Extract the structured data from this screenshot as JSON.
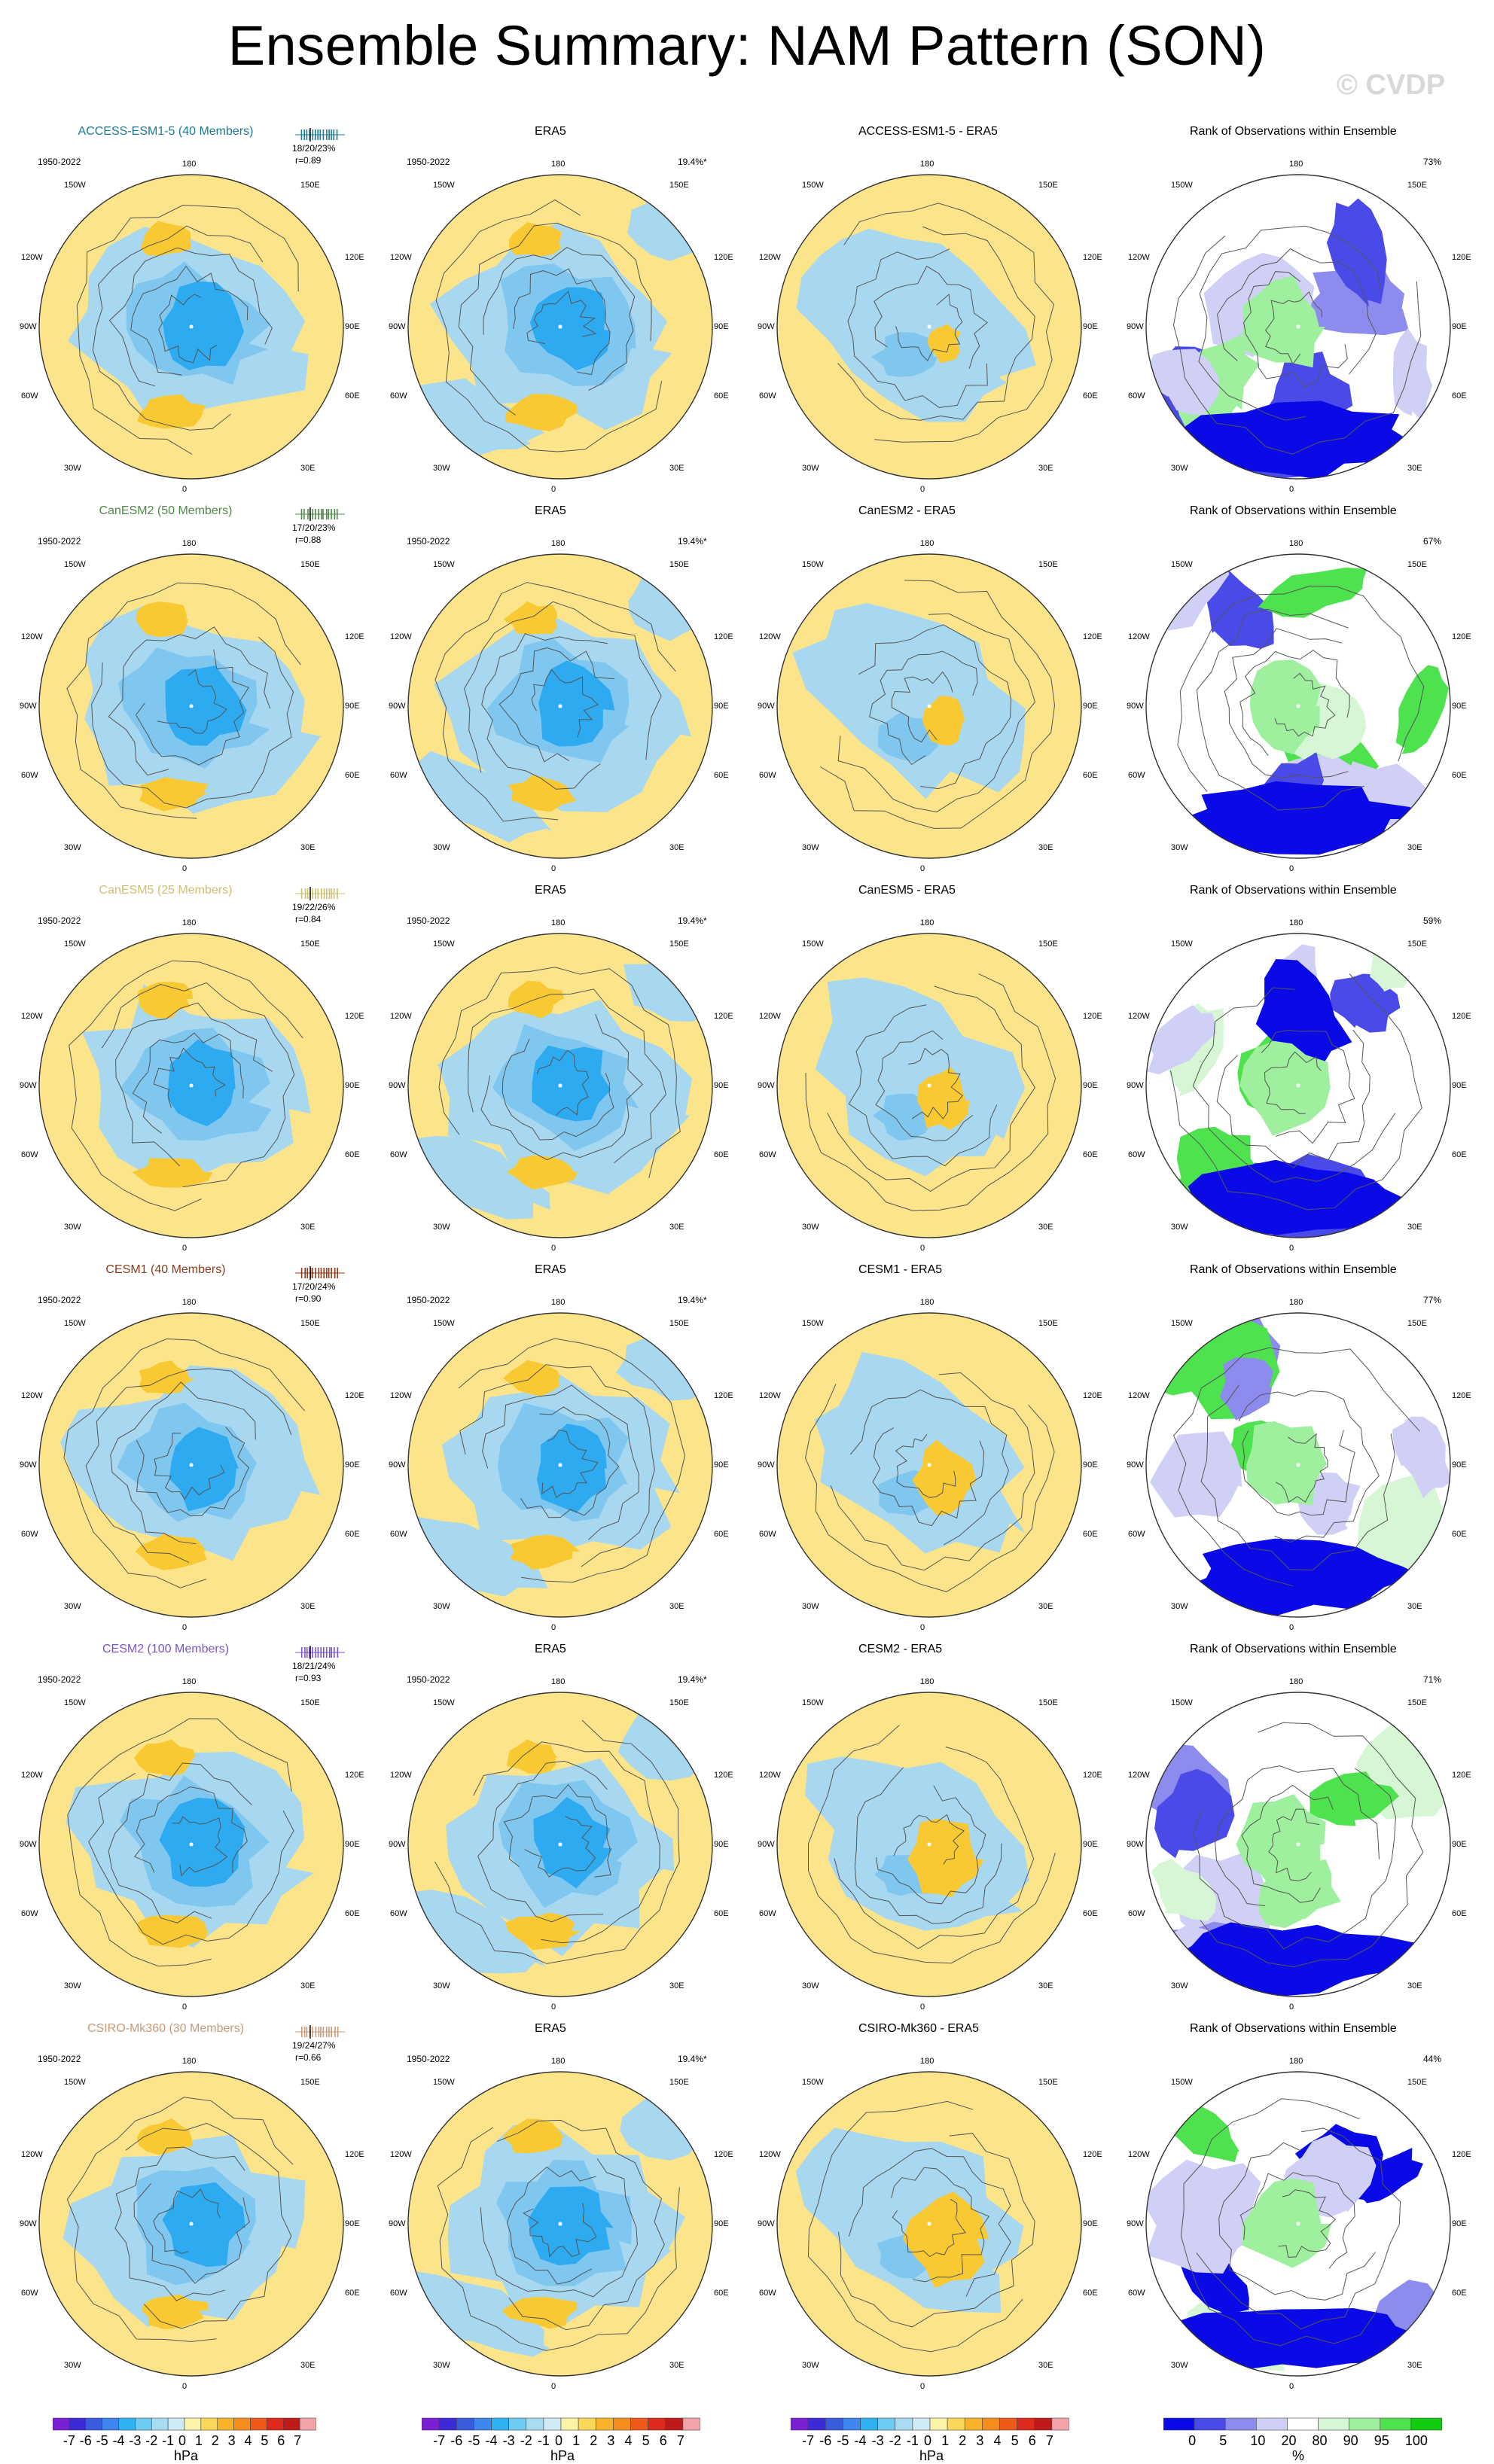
{
  "title": "Ensemble Summary: NAM Pattern (SON)",
  "watermark": "© CVDP",
  "panel_period": "1950-2022",
  "obs_title": "ERA5",
  "obs_variance": "19.4%*",
  "rank_title": "Rank of Observations within Ensemble",
  "longitude_labels": [
    "180",
    "150W",
    "150E",
    "120W",
    "120E",
    "90W",
    "90E",
    "60W",
    "60E",
    "30W",
    "30E",
    "0"
  ],
  "rows": [
    {
      "model_title": "ACCESS-ESM1-5 (40 Members)",
      "color": "#1a7a94",
      "diff_title": "ACCESS-ESM1-5 - ERA5",
      "variance": "18/20/23%",
      "pattern_r": "r=0.89",
      "rank_percent": "73%"
    },
    {
      "model_title": "CanESM2 (50 Members)",
      "color": "#4e8a47",
      "diff_title": "CanESM2 - ERA5",
      "variance": "17/20/23%",
      "pattern_r": "r=0.88",
      "rank_percent": "67%"
    },
    {
      "model_title": "CanESM5 (25 Members)",
      "color": "#cdbf72",
      "diff_title": "CanESM5 - ERA5",
      "variance": "19/22/26%",
      "pattern_r": "r=0.84",
      "rank_percent": "59%"
    },
    {
      "model_title": "CESM1 (40 Members)",
      "color": "#8c3b1c",
      "diff_title": "CESM1 - ERA5",
      "variance": "17/20/24%",
      "pattern_r": "r=0.90",
      "rank_percent": "77%"
    },
    {
      "model_title": "CESM2 (100 Members)",
      "color": "#7a52c9",
      "diff_title": "CESM2 - ERA5",
      "variance": "18/21/24%",
      "pattern_r": "r=0.93",
      "rank_percent": "71%"
    },
    {
      "model_title": "CSIRO-Mk360 (30 Members)",
      "color": "#c79a78",
      "diff_title": "CSIRO-Mk360 - ERA5",
      "variance": "19/24/27%",
      "pattern_r": "r=0.66",
      "rank_percent": "44%"
    }
  ],
  "colorbar_hpa": {
    "labels": [
      "-7",
      "-6",
      "-5",
      "-4",
      "-3",
      "-2",
      "-1",
      "0",
      "1",
      "2",
      "3",
      "4",
      "5",
      "6",
      "7"
    ],
    "colors": [
      "#7b1fd4",
      "#3b2ad6",
      "#3b5bdf",
      "#3f86ee",
      "#2fb0f0",
      "#6dcaf2",
      "#a8dcf0",
      "#cfeaf2",
      "#fbf3a6",
      "#fbd75a",
      "#f9b32a",
      "#f58d1d",
      "#ef5a18",
      "#dd2a1c",
      "#bf1a1a",
      "#f2a3a8"
    ],
    "unit": "hPa"
  },
  "colorbar_rank": {
    "labels": [
      "0",
      "5",
      "10",
      "20",
      "80",
      "90",
      "95",
      "100"
    ],
    "colors": [
      "#0a0ae6",
      "#4a4ae8",
      "#8c8cef",
      "#d0d0f7",
      "#ffffff",
      "#d6f6d6",
      "#9ef09e",
      "#4fe24f",
      "#11cc11"
    ],
    "unit": "%"
  },
  "colors": {
    "positive": "#fce48a",
    "negative": "#a8d8ef",
    "strong_negative": "#2eaaf0",
    "rank_low": "#0a0ae6",
    "rank_high": "#11cc11"
  },
  "chart_data": {
    "type": "heatmap",
    "description_fields": {
      "projection": "polar stereographic, Northern Hemisphere",
      "grid": "off"
    }
  }
}
